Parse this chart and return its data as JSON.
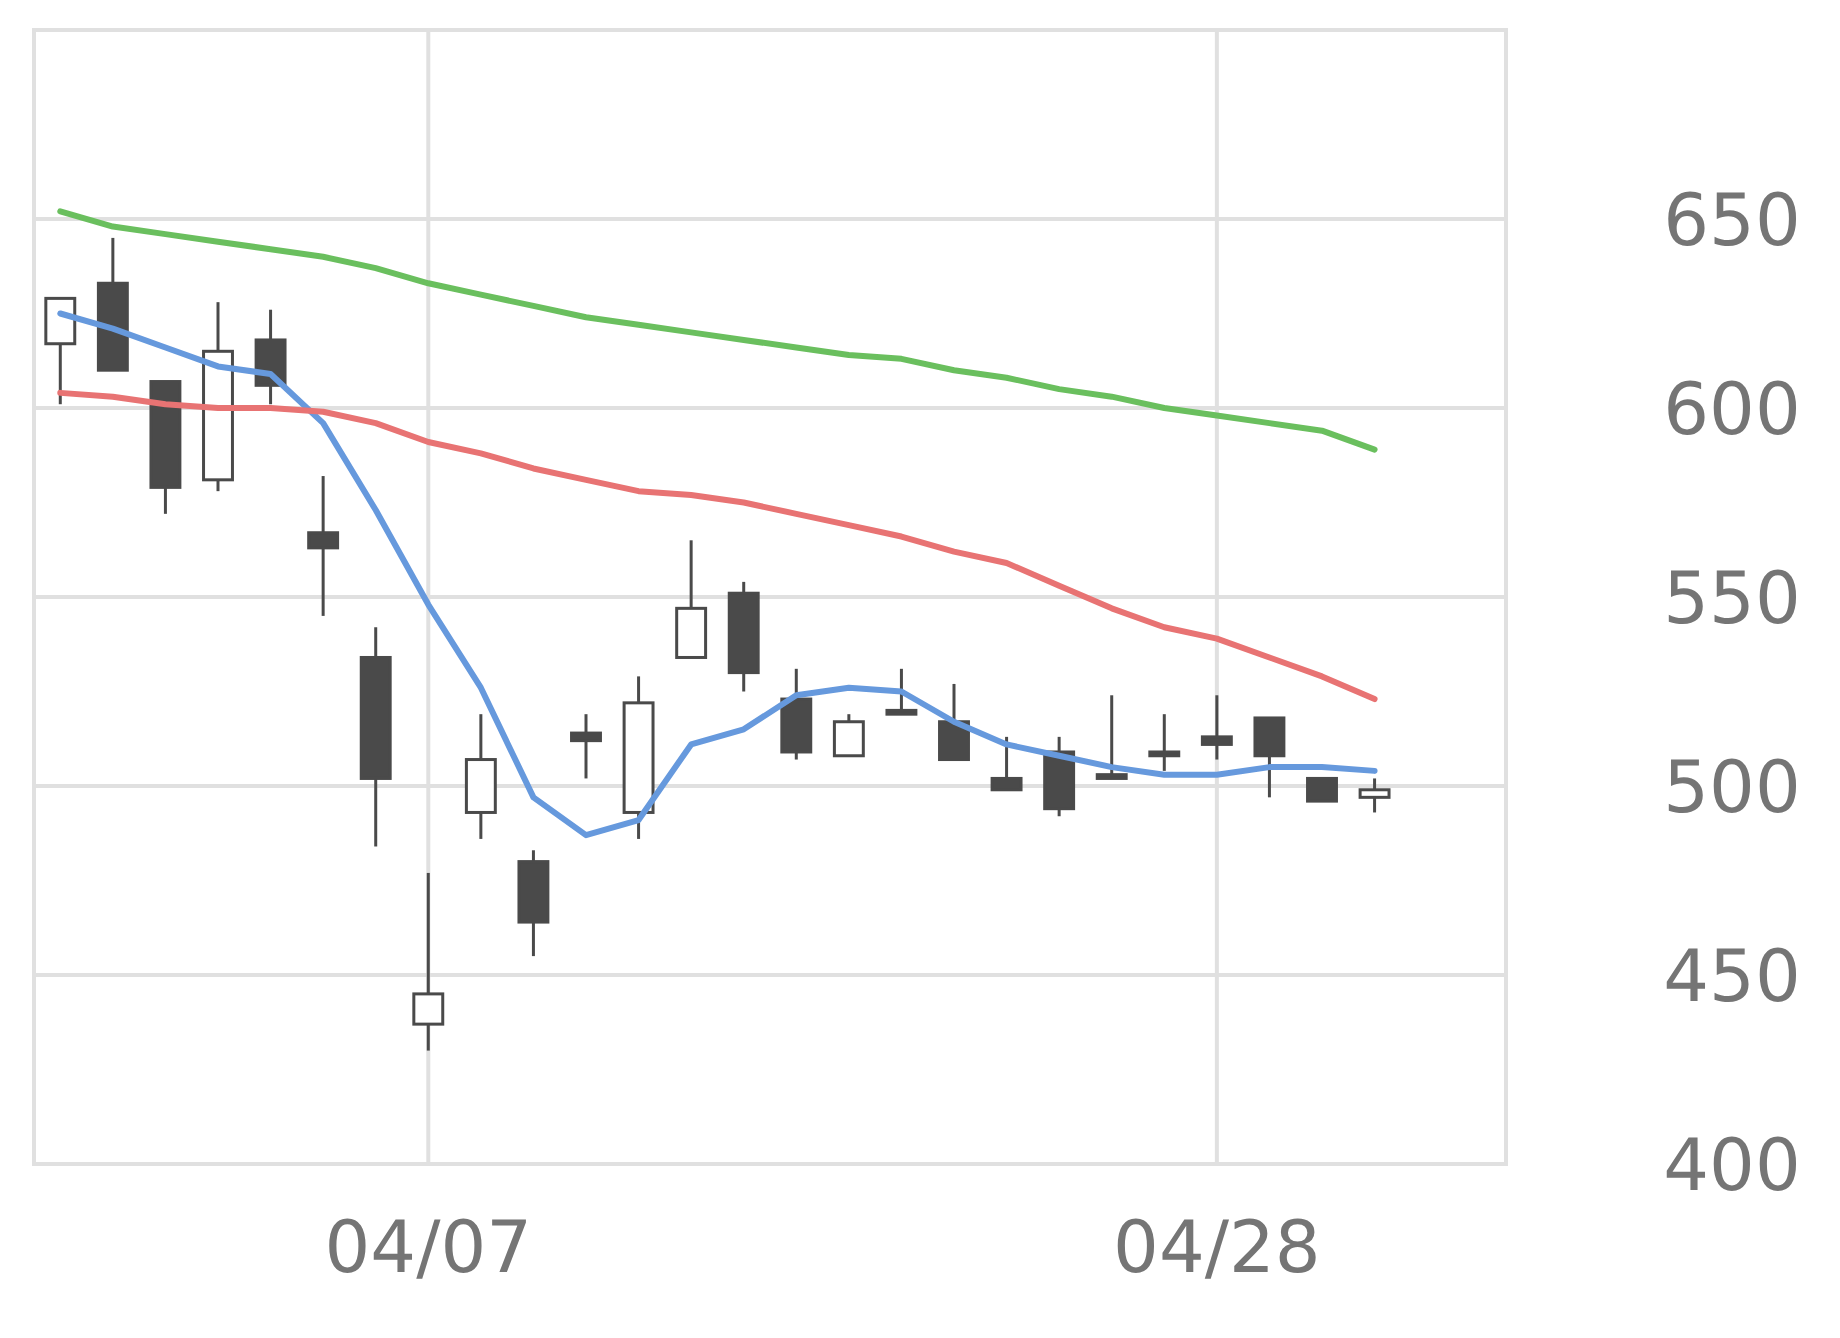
{
  "chart_data": {
    "type": "candlestick",
    "categories": [
      null,
      null,
      null,
      null,
      null,
      null,
      null,
      "04/07",
      null,
      null,
      null,
      null,
      null,
      null,
      null,
      null,
      null,
      null,
      null,
      null,
      null,
      null,
      "04/28",
      null,
      null,
      null,
      null,
      null
    ],
    "ohlc": [
      [
        617,
        629,
        601,
        629
      ],
      [
        633,
        645,
        610,
        610
      ],
      [
        607,
        607,
        572,
        579
      ],
      [
        581,
        628,
        578,
        615
      ],
      [
        618,
        626,
        601,
        606
      ],
      [
        567,
        582,
        545,
        563
      ],
      [
        534,
        542,
        484,
        502
      ],
      [
        437,
        477,
        430,
        445
      ],
      [
        493,
        519,
        486,
        507
      ],
      [
        480,
        483,
        455,
        464
      ],
      [
        514,
        519,
        502,
        512
      ],
      [
        493,
        529,
        486,
        522
      ],
      [
        534,
        565,
        534,
        547
      ],
      [
        551,
        554,
        525,
        530
      ],
      [
        523,
        531,
        507,
        509
      ],
      [
        508,
        519,
        508,
        517
      ],
      [
        520,
        531,
        519,
        519
      ],
      [
        517,
        527,
        507,
        507
      ],
      [
        502,
        513,
        499,
        499
      ],
      [
        509,
        513,
        492,
        494
      ],
      [
        503,
        524,
        502,
        502
      ],
      [
        509,
        519,
        504,
        508
      ],
      [
        513,
        524,
        507,
        511
      ],
      [
        518,
        518,
        497,
        508
      ],
      [
        502,
        502,
        496,
        496
      ],
      [
        497,
        502,
        493,
        499
      ],
      null,
      null
    ],
    "series": [
      {
        "type": "line",
        "color": "#6699dd",
        "values": [
          625,
          621,
          616,
          611,
          609,
          596,
          573,
          548,
          526,
          497,
          487,
          491,
          511,
          515,
          524,
          526,
          525,
          517,
          511,
          508,
          505,
          503,
          503,
          505,
          505,
          504,
          null,
          null
        ]
      },
      {
        "type": "line",
        "color": "#e87373",
        "values": [
          604,
          603,
          601,
          600,
          600,
          599,
          596,
          591,
          588,
          584,
          581,
          578,
          577,
          575,
          572,
          569,
          566,
          562,
          559,
          553,
          547,
          542,
          539,
          534,
          529,
          523,
          null,
          null
        ]
      },
      {
        "type": "line",
        "color": "#6abf5e",
        "values": [
          652,
          648,
          646,
          644,
          642,
          640,
          637,
          633,
          630,
          627,
          624,
          622,
          620,
          618,
          616,
          614,
          613,
          610,
          608,
          605,
          603,
          600,
          598,
          596,
          594,
          589,
          null,
          null
        ]
      }
    ],
    "ylim": [
      400,
      700
    ],
    "yticks": [
      400,
      450,
      500,
      550,
      600,
      650
    ],
    "grid": true
  }
}
